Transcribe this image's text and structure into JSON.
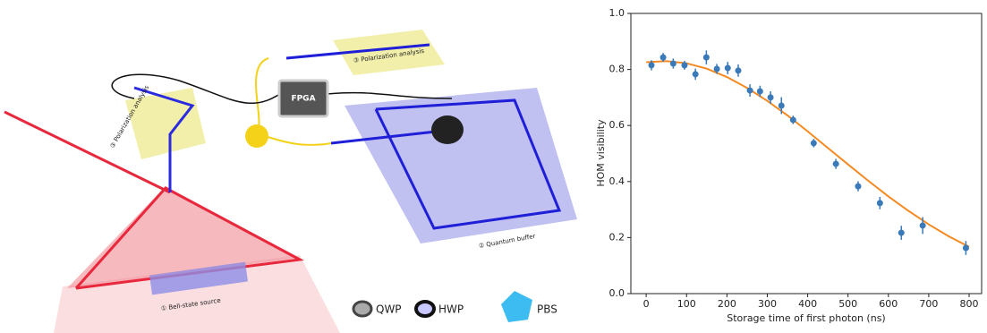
{
  "diagram": {
    "chip": "FPGA",
    "labels": [
      "③ Polarization analysis",
      "③ Polarization analysis",
      "① Bell-state source",
      "② Quantum buffer"
    ],
    "legend": [
      "QWP",
      "HWP",
      "PBS"
    ]
  },
  "chart_data": {
    "type": "scatter",
    "x_label": "Storage time of first photon (ns)",
    "y_label": "HOM visibility",
    "xlim": [
      -38,
      831
    ],
    "ylim": [
      0,
      1.0
    ],
    "xticks": [
      0,
      100,
      200,
      300,
      400,
      500,
      600,
      700,
      800
    ],
    "yticks": [
      {
        "value": 0,
        "label": "0.0"
      },
      {
        "value": 0.2,
        "label": "0.2"
      },
      {
        "value": 0.4,
        "label": "0.4"
      },
      {
        "value": 0.6,
        "label": "0.6"
      },
      {
        "value": 0.8,
        "label": "0.8"
      },
      {
        "value": 1.0,
        "label": "1.0"
      }
    ],
    "points": {
      "color": "#3a7ab8",
      "x": [
        13,
        42,
        67,
        95,
        122,
        149,
        175,
        202,
        228,
        257,
        282,
        308,
        335,
        364,
        415,
        470,
        525,
        579,
        632,
        685,
        792
      ],
      "values": [
        0.815,
        0.843,
        0.821,
        0.815,
        0.783,
        0.843,
        0.802,
        0.805,
        0.796,
        0.725,
        0.722,
        0.7,
        0.671,
        0.62,
        0.537,
        0.463,
        0.383,
        0.323,
        0.217,
        0.243,
        0.163
      ],
      "errors": [
        0.018,
        0.016,
        0.018,
        0.016,
        0.02,
        0.025,
        0.018,
        0.022,
        0.022,
        0.022,
        0.02,
        0.022,
        0.03,
        0.015,
        0.015,
        0.018,
        0.018,
        0.022,
        0.025,
        0.03,
        0.025
      ]
    },
    "fit": {
      "color": "#f58a22",
      "x": [
        0,
        50,
        100,
        150,
        200,
        250,
        300,
        350,
        400,
        450,
        500,
        550,
        600,
        650,
        700,
        750,
        800
      ],
      "values": [
        0.826,
        0.83,
        0.822,
        0.803,
        0.773,
        0.734,
        0.688,
        0.636,
        0.579,
        0.52,
        0.461,
        0.403,
        0.347,
        0.295,
        0.247,
        0.204,
        0.167
      ]
    }
  }
}
